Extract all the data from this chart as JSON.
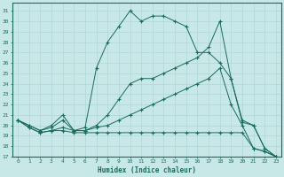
{
  "xlabel": "Humidex (Indice chaleur)",
  "xlim": [
    -0.5,
    23.5
  ],
  "ylim": [
    17,
    31.8
  ],
  "yticks": [
    17,
    18,
    19,
    20,
    21,
    22,
    23,
    24,
    25,
    26,
    27,
    28,
    29,
    30,
    31
  ],
  "xticks": [
    0,
    1,
    2,
    3,
    4,
    5,
    6,
    7,
    8,
    9,
    10,
    11,
    12,
    13,
    14,
    15,
    16,
    17,
    18,
    19,
    20,
    21,
    22,
    23
  ],
  "bg_color": "#c8e8e8",
  "line_color": "#1a6b5a",
  "grid_color": "#b0d4d4",
  "line1": [
    20.5,
    20.0,
    19.5,
    20.0,
    21.0,
    19.5,
    19.8,
    25.5,
    28.0,
    29.5,
    31.0,
    30.0,
    30.5,
    30.5,
    30.0,
    29.5,
    27.0,
    27.0,
    26.0,
    24.5,
    20.5,
    20.0,
    17.8,
    17.0
  ],
  "line2": [
    20.5,
    20.0,
    19.5,
    19.8,
    20.5,
    19.5,
    19.5,
    20.0,
    21.0,
    22.5,
    24.0,
    24.5,
    24.5,
    25.0,
    25.5,
    26.0,
    26.5,
    27.5,
    30.0,
    24.5,
    20.3,
    20.0,
    17.8,
    17.0
  ],
  "line3": [
    20.5,
    19.8,
    19.3,
    19.5,
    19.8,
    19.5,
    19.5,
    19.8,
    20.0,
    20.5,
    21.0,
    21.5,
    22.0,
    22.5,
    23.0,
    23.5,
    24.0,
    24.5,
    25.5,
    22.0,
    20.0,
    17.8,
    17.5,
    17.0
  ],
  "line4": [
    20.5,
    19.8,
    19.3,
    19.5,
    19.5,
    19.3,
    19.3,
    19.3,
    19.3,
    19.3,
    19.3,
    19.3,
    19.3,
    19.3,
    19.3,
    19.3,
    19.3,
    19.3,
    19.3,
    19.3,
    19.3,
    17.8,
    17.5,
    17.0
  ]
}
